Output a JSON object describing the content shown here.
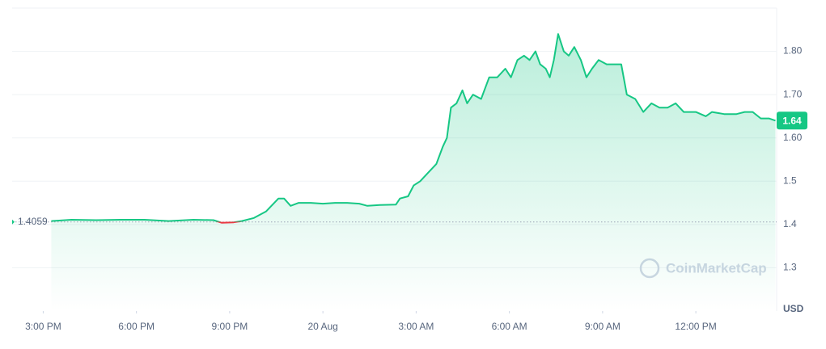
{
  "chart_data": {
    "type": "line",
    "x": [
      15.26,
      15.91,
      16.7,
      17.48,
      18.26,
      19.04,
      19.83,
      20.48,
      20.74,
      21.13,
      21.39,
      21.78,
      22.17,
      22.57,
      22.75,
      22.96,
      23.22,
      23.61,
      24.0,
      24.39,
      24.78,
      25.17,
      25.43,
      25.83,
      26.35,
      26.48,
      26.74,
      26.92,
      27.13,
      27.39,
      27.65,
      27.86,
      27.99,
      28.12,
      28.3,
      28.49,
      28.64,
      28.83,
      29.09,
      29.35,
      29.61,
      29.87,
      30.05,
      30.26,
      30.47,
      30.65,
      30.84,
      30.99,
      31.17,
      31.3,
      31.43,
      31.57,
      31.75,
      31.91,
      32.09,
      32.3,
      32.48,
      32.66,
      32.87,
      33.13,
      33.6,
      33.78,
      34.05,
      34.31,
      34.57,
      34.83,
      35.09,
      35.35,
      35.61,
      36.0,
      36.32,
      36.52,
      36.91,
      37.31,
      37.57,
      37.83,
      38.09,
      38.35,
      38.56
    ],
    "values": [
      1.408,
      1.411,
      1.41,
      1.411,
      1.411,
      1.408,
      1.411,
      1.41,
      1.404,
      1.405,
      1.408,
      1.415,
      1.43,
      1.46,
      1.46,
      1.443,
      1.45,
      1.45,
      1.448,
      1.45,
      1.45,
      1.448,
      1.443,
      1.445,
      1.446,
      1.46,
      1.465,
      1.49,
      1.5,
      1.52,
      1.54,
      1.58,
      1.6,
      1.67,
      1.68,
      1.71,
      1.68,
      1.7,
      1.69,
      1.74,
      1.74,
      1.76,
      1.74,
      1.78,
      1.79,
      1.78,
      1.8,
      1.77,
      1.76,
      1.74,
      1.78,
      1.84,
      1.8,
      1.79,
      1.81,
      1.78,
      1.74,
      1.76,
      1.78,
      1.77,
      1.77,
      1.7,
      1.69,
      1.66,
      1.68,
      1.67,
      1.67,
      1.68,
      1.66,
      1.66,
      1.65,
      1.66,
      1.655,
      1.655,
      1.66,
      1.66,
      1.645,
      1.645,
      1.64
    ],
    "up_color": "#16c784",
    "down_color": "#ea3943",
    "baseline": 1.4059,
    "current_price": 1.64,
    "xlim": [
      14,
      38.6
    ],
    "xticks": [
      {
        "value": 15,
        "label": "3:00 PM"
      },
      {
        "value": 18,
        "label": "6:00 PM"
      },
      {
        "value": 21,
        "label": "9:00 PM"
      },
      {
        "value": 24,
        "label": "20 Aug"
      },
      {
        "value": 27,
        "label": "3:00 AM"
      },
      {
        "value": 30,
        "label": "6:00 AM"
      },
      {
        "value": 33,
        "label": "9:00 AM"
      },
      {
        "value": 36,
        "label": "12:00 PM"
      }
    ],
    "ylim": [
      1.2,
      1.9
    ],
    "yticks": [
      1.3,
      1.4,
      1.5,
      {
        "value": 1.6,
        "label": "1.60"
      },
      {
        "value": 1.7,
        "label": "1.70"
      },
      {
        "value": 1.8,
        "label": "1.80"
      }
    ],
    "y_unit": "USD",
    "watermark": "CoinMarketCap",
    "grid": true
  }
}
